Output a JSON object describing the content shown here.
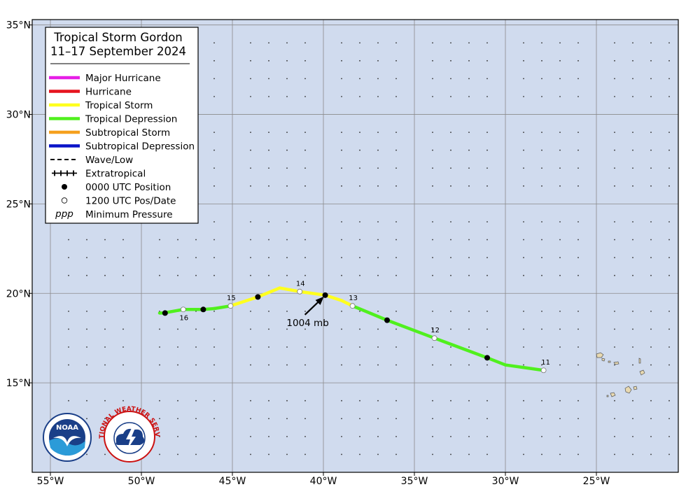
{
  "map": {
    "lon_range": [
      -56,
      -20.5
    ],
    "lat_range": [
      10,
      35.3
    ],
    "lon_ticks": [
      {
        "value": -55,
        "label": "55°W"
      },
      {
        "value": -50,
        "label": "50°W"
      },
      {
        "value": -45,
        "label": "45°W"
      },
      {
        "value": -40,
        "label": "40°W"
      },
      {
        "value": -35,
        "label": "35°W"
      },
      {
        "value": -30,
        "label": "30°W"
      },
      {
        "value": -25,
        "label": "25°W"
      }
    ],
    "lat_ticks": [
      {
        "value": 15,
        "label": "15°N"
      },
      {
        "value": 20,
        "label": "20°N"
      },
      {
        "value": 25,
        "label": "25°N"
      },
      {
        "value": 30,
        "label": "30°N"
      },
      {
        "value": 35,
        "label": "35°N"
      }
    ],
    "grid": true,
    "ocean_color": "#d0dbee",
    "land_color": "#e8d9b0"
  },
  "legend": {
    "title_line1": "Tropical Storm Gordon",
    "title_line2": "11–17 September 2024",
    "placement": "top-left",
    "items": [
      {
        "label": "Major Hurricane",
        "type": "line",
        "color": "#e61ee6"
      },
      {
        "label": "Hurricane",
        "type": "line",
        "color": "#e6141e"
      },
      {
        "label": "Tropical Storm",
        "type": "line",
        "color": "#ffff1e"
      },
      {
        "label": "Tropical Depression",
        "type": "line",
        "color": "#50f01e"
      },
      {
        "label": "Subtropical Storm",
        "type": "line",
        "color": "#f5a01e"
      },
      {
        "label": "Subtropical Depression",
        "type": "line",
        "color": "#0a14c8"
      },
      {
        "label": "Wave/Low",
        "type": "dash",
        "color": "#000000"
      },
      {
        "label": "Extratropical",
        "type": "plus",
        "color": "#000000"
      },
      {
        "label": "0000 UTC Position",
        "type": "dot-black",
        "color": "#000000"
      },
      {
        "label": "1200 UTC Pos/Date",
        "type": "dot-white",
        "color": "#000000"
      },
      {
        "label": "Minimum Pressure",
        "type": "ppp",
        "symbol": "ppp",
        "color": "#000000"
      }
    ]
  },
  "track": {
    "points": [
      {
        "lon": -27.9,
        "lat": 15.7,
        "stage": "TD"
      },
      {
        "lon": -30.0,
        "lat": 16.0,
        "stage": "TD"
      },
      {
        "lon": -31.0,
        "lat": 16.4,
        "stage": "TD"
      },
      {
        "lon": -33.9,
        "lat": 17.5,
        "stage": "TD"
      },
      {
        "lon": -36.5,
        "lat": 18.5,
        "stage": "TD"
      },
      {
        "lon": -38.4,
        "lat": 19.3,
        "stage": "TD"
      },
      {
        "lon": -39.0,
        "lat": 19.6,
        "stage": "TS"
      },
      {
        "lon": -39.9,
        "lat": 19.9,
        "stage": "TS"
      },
      {
        "lon": -41.3,
        "lat": 20.1,
        "stage": "TS"
      },
      {
        "lon": -42.4,
        "lat": 20.3,
        "stage": "TS"
      },
      {
        "lon": -43.6,
        "lat": 19.8,
        "stage": "TS"
      },
      {
        "lon": -45.1,
        "lat": 19.3,
        "stage": "TS"
      },
      {
        "lon": -46.0,
        "lat": 19.15,
        "stage": "TD"
      },
      {
        "lon": -46.6,
        "lat": 19.1,
        "stage": "TD"
      },
      {
        "lon": -47.7,
        "lat": 19.1,
        "stage": "TD"
      },
      {
        "lon": -48.8,
        "lat": 18.9,
        "stage": "TD"
      },
      {
        "lon": -49.0,
        "lat": 18.9,
        "stage": "TD"
      }
    ],
    "positions_0000": [
      {
        "lon": -31.0,
        "lat": 16.4
      },
      {
        "lon": -36.5,
        "lat": 18.5
      },
      {
        "lon": -39.9,
        "lat": 19.9
      },
      {
        "lon": -43.6,
        "lat": 19.8
      },
      {
        "lon": -46.6,
        "lat": 19.1
      },
      {
        "lon": -48.7,
        "lat": 18.9
      }
    ],
    "positions_1200": [
      {
        "lon": -27.9,
        "lat": 15.7,
        "date": "11"
      },
      {
        "lon": -33.9,
        "lat": 17.5,
        "date": "12"
      },
      {
        "lon": -38.4,
        "lat": 19.3,
        "date": "13"
      },
      {
        "lon": -41.3,
        "lat": 20.1,
        "date": "14"
      },
      {
        "lon": -45.1,
        "lat": 19.3,
        "date": "15"
      },
      {
        "lon": -47.7,
        "lat": 19.1,
        "date": "16"
      }
    ],
    "min_pressure": {
      "lon": -39.9,
      "lat": 19.9,
      "label": "1004 mb"
    }
  },
  "logos": {
    "noaa_text": "NOAA",
    "nws_text": "NATIONAL WEATHER SERVICE"
  }
}
